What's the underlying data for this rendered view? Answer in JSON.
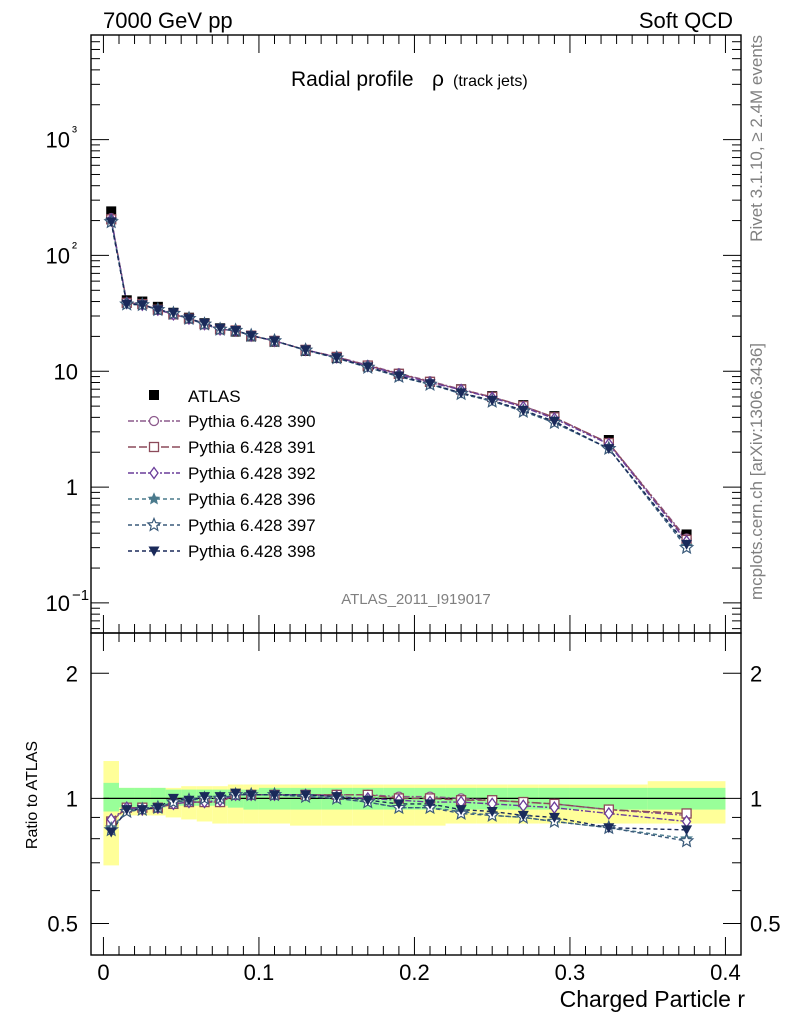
{
  "header": {
    "left": "7000 GeV pp",
    "right": "Soft QCD"
  },
  "side_text": {
    "rivet": "Rivet 3.1.10, ≥ 2.4M events",
    "mcplots": "mcplots.cern.ch [arXiv:1306.3436]"
  },
  "analysis_id": "ATLAS_2011_I919017",
  "chart_data": [
    {
      "type": "scatter",
      "title": "Radial profile",
      "title_symbol": "ρ",
      "title_suffix": "(track jets)",
      "xlabel": "Charged Particle r",
      "ylabel": "",
      "yscale": "log",
      "xlim": [
        -0.008,
        0.41
      ],
      "ylim": [
        0.055,
        8000
      ],
      "y_tick_labels": [
        "10−1",
        "1",
        "10",
        "10²",
        "10³"
      ],
      "x": [
        0.005,
        0.015,
        0.025,
        0.035,
        0.045,
        0.055,
        0.065,
        0.075,
        0.085,
        0.095,
        0.11,
        0.13,
        0.15,
        0.17,
        0.19,
        0.21,
        0.23,
        0.25,
        0.27,
        0.29,
        0.325,
        0.375
      ],
      "data": {
        "name": "ATLAS",
        "values": [
          240,
          41,
          40,
          36,
          32,
          29,
          26,
          23.5,
          22,
          20,
          18,
          15,
          13,
          11,
          9.5,
          8.1,
          7,
          6.1,
          5.1,
          4.1,
          2.55,
          0.39
        ]
      },
      "series": [
        {
          "name": "Pythia 6.428 390",
          "color": "#8c5a8c",
          "marker": "open-circle",
          "dash": "6,2,2,2",
          "values": [
            210,
            39,
            38,
            34,
            31,
            28.5,
            25.5,
            23,
            22.5,
            20.3,
            18.3,
            15.3,
            13.3,
            11.3,
            9.6,
            8.2,
            7.0,
            6.0,
            5.0,
            4.0,
            2.4,
            0.36
          ]
        },
        {
          "name": "Pythia 6.428 391",
          "color": "#8c4a5a",
          "marker": "open-square",
          "dash": "8,3",
          "values": [
            205,
            39,
            38,
            34,
            31,
            28.5,
            25.5,
            23,
            22.5,
            20.3,
            18.3,
            15.3,
            13.3,
            11.2,
            9.5,
            8.1,
            6.95,
            6.0,
            5.0,
            4.0,
            2.4,
            0.35
          ]
        },
        {
          "name": "Pythia 6.428 392",
          "color": "#6a3d9a",
          "marker": "open-diamond",
          "dash": "6,2,2,2",
          "values": [
            205,
            39,
            37.5,
            34,
            31,
            28.5,
            25.5,
            23,
            22.5,
            20.3,
            18.3,
            15.3,
            13.2,
            11.1,
            9.4,
            8.0,
            6.9,
            5.9,
            4.9,
            3.9,
            2.35,
            0.34
          ]
        },
        {
          "name": "Pythia 6.428 396",
          "color": "#4a7a8c",
          "marker": "filled-star",
          "dash": "4,3",
          "values": [
            200,
            38,
            37.5,
            34,
            31.5,
            28.5,
            25.5,
            23,
            22.5,
            20.3,
            18.3,
            15.2,
            13.0,
            10.8,
            9.0,
            7.7,
            6.5,
            5.5,
            4.6,
            3.6,
            2.15,
            0.31
          ]
        },
        {
          "name": "Pythia 6.428 397",
          "color": "#3a5a7a",
          "marker": "open-star",
          "dash": "4,3",
          "values": [
            195,
            38,
            37.5,
            34,
            31.5,
            28.5,
            25.5,
            23,
            22.5,
            20.3,
            18.3,
            15.2,
            13.0,
            10.8,
            9.0,
            7.7,
            6.4,
            5.5,
            4.5,
            3.6,
            2.15,
            0.3
          ]
        },
        {
          "name": "Pythia 6.428 398",
          "color": "#1a2a5a",
          "marker": "filled-triangle-down",
          "dash": "4,3",
          "values": [
            195,
            38,
            37.5,
            34,
            32,
            28.5,
            26,
            23.5,
            22.5,
            20.3,
            18.3,
            15.3,
            13.1,
            10.9,
            9.1,
            7.8,
            6.5,
            5.6,
            4.6,
            3.7,
            2.15,
            0.32
          ]
        }
      ]
    },
    {
      "type": "scatter",
      "title": "",
      "ylabel": "Ratio to ATLAS",
      "xlabel": "Charged Particle r",
      "yscale": "log",
      "xlim": [
        -0.008,
        0.41
      ],
      "ylim": [
        0.42,
        2.5
      ],
      "y_tick_labels": [
        "0.5",
        "1",
        "2"
      ],
      "x_tick_labels": [
        "0",
        "0.1",
        "0.2",
        "0.3",
        "0.4"
      ],
      "bin_edges": [
        0,
        0.01,
        0.02,
        0.03,
        0.04,
        0.05,
        0.06,
        0.07,
        0.08,
        0.09,
        0.1,
        0.12,
        0.14,
        0.16,
        0.18,
        0.2,
        0.22,
        0.24,
        0.26,
        0.28,
        0.3,
        0.35,
        0.4
      ],
      "band_stat": [
        [
          0.93,
          1.09
        ],
        [
          0.95,
          1.06
        ],
        [
          0.95,
          1.06
        ],
        [
          0.95,
          1.06
        ],
        [
          0.96,
          1.05
        ],
        [
          0.96,
          1.05
        ],
        [
          0.96,
          1.05
        ],
        [
          0.96,
          1.05
        ],
        [
          0.95,
          1.05
        ],
        [
          0.94,
          1.05
        ],
        [
          0.94,
          1.06
        ],
        [
          0.94,
          1.06
        ],
        [
          0.94,
          1.06
        ],
        [
          0.94,
          1.06
        ],
        [
          0.94,
          1.06
        ],
        [
          0.94,
          1.06
        ],
        [
          0.94,
          1.06
        ],
        [
          0.94,
          1.06
        ],
        [
          0.94,
          1.06
        ],
        [
          0.94,
          1.06
        ],
        [
          0.94,
          1.06
        ],
        [
          0.94,
          1.06
        ]
      ],
      "band_syst": [
        [
          0.69,
          1.23
        ],
        [
          0.91,
          1.06
        ],
        [
          0.91,
          1.06
        ],
        [
          0.91,
          1.06
        ],
        [
          0.9,
          1.06
        ],
        [
          0.89,
          1.07
        ],
        [
          0.88,
          1.07
        ],
        [
          0.87,
          1.07
        ],
        [
          0.87,
          1.08
        ],
        [
          0.87,
          1.08
        ],
        [
          0.87,
          1.08
        ],
        [
          0.86,
          1.08
        ],
        [
          0.86,
          1.08
        ],
        [
          0.86,
          1.08
        ],
        [
          0.86,
          1.08
        ],
        [
          0.86,
          1.08
        ],
        [
          0.87,
          1.08
        ],
        [
          0.87,
          1.08
        ],
        [
          0.87,
          1.08
        ],
        [
          0.87,
          1.08
        ],
        [
          0.87,
          1.08
        ],
        [
          0.87,
          1.1
        ]
      ],
      "x": [
        0.005,
        0.015,
        0.025,
        0.035,
        0.045,
        0.055,
        0.065,
        0.075,
        0.085,
        0.095,
        0.11,
        0.13,
        0.15,
        0.17,
        0.19,
        0.21,
        0.23,
        0.25,
        0.27,
        0.29,
        0.325,
        0.375
      ],
      "series": [
        {
          "name": "Pythia 6.428 390",
          "values": [
            0.88,
            0.95,
            0.95,
            0.95,
            0.97,
            0.98,
            0.98,
            0.98,
            1.02,
            1.02,
            1.02,
            1.02,
            1.02,
            1.02,
            1.01,
            1.01,
            1.0,
            0.99,
            0.98,
            0.97,
            0.94,
            0.91
          ]
        },
        {
          "name": "Pythia 6.428 391",
          "values": [
            0.88,
            0.95,
            0.95,
            0.95,
            0.97,
            0.98,
            0.98,
            0.98,
            1.02,
            1.02,
            1.02,
            1.02,
            1.02,
            1.02,
            1.0,
            1.0,
            0.99,
            0.99,
            0.98,
            0.97,
            0.94,
            0.92
          ]
        },
        {
          "name": "Pythia 6.428 392",
          "values": [
            0.89,
            0.95,
            0.94,
            0.95,
            0.97,
            0.98,
            0.98,
            0.99,
            1.02,
            1.02,
            1.02,
            1.02,
            1.01,
            1.0,
            0.99,
            0.98,
            0.98,
            0.97,
            0.96,
            0.95,
            0.92,
            0.88
          ]
        },
        {
          "name": "Pythia 6.428 396",
          "values": [
            0.85,
            0.93,
            0.94,
            0.95,
            0.98,
            0.99,
            1.0,
            1.0,
            1.02,
            1.02,
            1.02,
            1.01,
            1.0,
            0.98,
            0.95,
            0.95,
            0.93,
            0.91,
            0.9,
            0.88,
            0.85,
            0.8
          ]
        },
        {
          "name": "Pythia 6.428 397",
          "values": [
            0.84,
            0.93,
            0.94,
            0.95,
            0.98,
            0.99,
            1.0,
            1.0,
            1.02,
            1.02,
            1.02,
            1.01,
            1.0,
            0.98,
            0.95,
            0.95,
            0.92,
            0.91,
            0.9,
            0.88,
            0.85,
            0.79
          ]
        },
        {
          "name": "Pythia 6.428 398",
          "values": [
            0.83,
            0.94,
            0.94,
            0.95,
            1.0,
            0.99,
            1.01,
            1.01,
            1.03,
            1.02,
            1.02,
            1.02,
            1.01,
            0.99,
            0.97,
            0.97,
            0.94,
            0.93,
            0.91,
            0.9,
            0.85,
            0.84
          ]
        }
      ]
    }
  ]
}
